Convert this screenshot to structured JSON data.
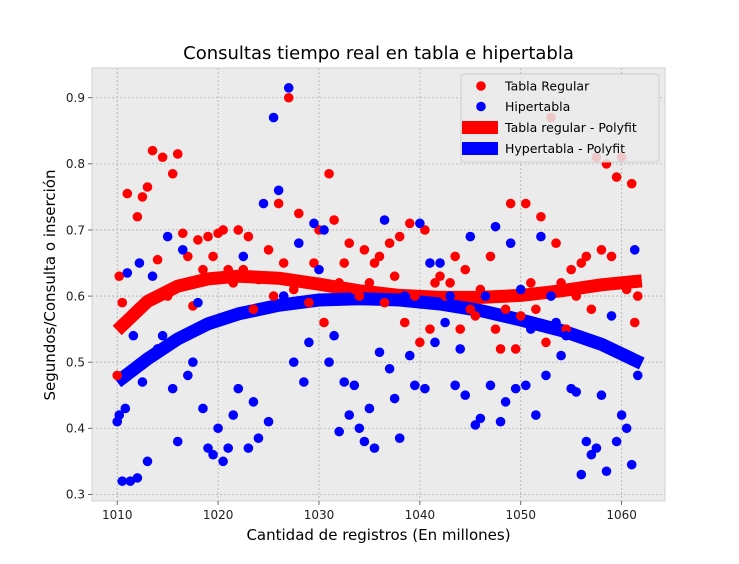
{
  "chart_data": {
    "type": "scatter",
    "title": "Consultas tiempo real en tabla e hipertabla",
    "xlabel": "Cantidad de registros (En millones)",
    "ylabel": "Segundos/Consulta o inserción",
    "xlim": [
      1007.5,
      1064.3
    ],
    "ylim": [
      0.29,
      0.945
    ],
    "xticks": [
      1010,
      1020,
      1030,
      1040,
      1050,
      1060
    ],
    "yticks": [
      0.3,
      0.4,
      0.5,
      0.6,
      0.7,
      0.8,
      0.9
    ],
    "grid": true,
    "legend_position": "top-right",
    "legend": {
      "tabla_regular": "Tabla Regular",
      "hipertabla": "Hipertabla",
      "tabla_fit": "Tabla regular - Polyfit",
      "hiper_fit": "Hypertabla - Polyfit"
    },
    "colors": {
      "tabla": "#ff0000",
      "hiper": "#0000ff",
      "background": "#ebebeb",
      "grid": "#b0b0b0"
    },
    "series": [
      {
        "name": "Tabla Regular",
        "points": [
          [
            1010,
            0.48
          ],
          [
            1010.2,
            0.63
          ],
          [
            1010.5,
            0.59
          ],
          [
            1011,
            0.755
          ],
          [
            1011.5,
            0.57
          ],
          [
            1012,
            0.72
          ],
          [
            1012.5,
            0.75
          ],
          [
            1013,
            0.765
          ],
          [
            1013.5,
            0.82
          ],
          [
            1014,
            0.655
          ],
          [
            1014.5,
            0.81
          ],
          [
            1015,
            0.6
          ],
          [
            1015.5,
            0.785
          ],
          [
            1016,
            0.815
          ],
          [
            1016.5,
            0.695
          ],
          [
            1017,
            0.66
          ],
          [
            1017.5,
            0.585
          ],
          [
            1018,
            0.685
          ],
          [
            1018.5,
            0.64
          ],
          [
            1019,
            0.69
          ],
          [
            1019.5,
            0.66
          ],
          [
            1020,
            0.695
          ],
          [
            1020.5,
            0.7
          ],
          [
            1021,
            0.64
          ],
          [
            1021.5,
            0.62
          ],
          [
            1022,
            0.7
          ],
          [
            1022.5,
            0.64
          ],
          [
            1023,
            0.69
          ],
          [
            1023.5,
            0.58
          ],
          [
            1024,
            0.625
          ],
          [
            1024.5,
            0.63
          ],
          [
            1025,
            0.67
          ],
          [
            1025.5,
            0.6
          ],
          [
            1026,
            0.74
          ],
          [
            1026.5,
            0.65
          ],
          [
            1027,
            0.9
          ],
          [
            1027.5,
            0.61
          ],
          [
            1028,
            0.725
          ],
          [
            1028.5,
            0.62
          ],
          [
            1029,
            0.59
          ],
          [
            1029.5,
            0.65
          ],
          [
            1030,
            0.7
          ],
          [
            1030.5,
            0.56
          ],
          [
            1031,
            0.785
          ],
          [
            1031.5,
            0.715
          ],
          [
            1032,
            0.62
          ],
          [
            1032.5,
            0.65
          ],
          [
            1033,
            0.68
          ],
          [
            1033.5,
            0.61
          ],
          [
            1034,
            0.6
          ],
          [
            1034.5,
            0.67
          ],
          [
            1035,
            0.62
          ],
          [
            1035.5,
            0.65
          ],
          [
            1036,
            0.66
          ],
          [
            1036.5,
            0.59
          ],
          [
            1037,
            0.68
          ],
          [
            1037.5,
            0.63
          ],
          [
            1038,
            0.69
          ],
          [
            1038.5,
            0.56
          ],
          [
            1039,
            0.71
          ],
          [
            1039.5,
            0.6
          ],
          [
            1040,
            0.53
          ],
          [
            1040.5,
            0.7
          ],
          [
            1041,
            0.55
          ],
          [
            1041.5,
            0.62
          ],
          [
            1042,
            0.63
          ],
          [
            1042.5,
            0.6
          ],
          [
            1043,
            0.62
          ],
          [
            1043.5,
            0.66
          ],
          [
            1044,
            0.55
          ],
          [
            1044.5,
            0.64
          ],
          [
            1045,
            0.58
          ],
          [
            1045.5,
            0.57
          ],
          [
            1046,
            0.61
          ],
          [
            1046.5,
            0.6
          ],
          [
            1047,
            0.66
          ],
          [
            1047.5,
            0.55
          ],
          [
            1048,
            0.52
          ],
          [
            1048.5,
            0.58
          ],
          [
            1049,
            0.74
          ],
          [
            1049.5,
            0.52
          ],
          [
            1050,
            0.57
          ],
          [
            1050.5,
            0.74
          ],
          [
            1051,
            0.62
          ],
          [
            1051.5,
            0.58
          ],
          [
            1052,
            0.72
          ],
          [
            1052.5,
            0.53
          ],
          [
            1053,
            0.87
          ],
          [
            1053.5,
            0.68
          ],
          [
            1054,
            0.62
          ],
          [
            1054.5,
            0.55
          ],
          [
            1055,
            0.64
          ],
          [
            1055.5,
            0.6
          ],
          [
            1056,
            0.65
          ],
          [
            1056.5,
            0.66
          ],
          [
            1057,
            0.58
          ],
          [
            1057.5,
            0.81
          ],
          [
            1058,
            0.67
          ],
          [
            1058.5,
            0.8
          ],
          [
            1059,
            0.66
          ],
          [
            1059.5,
            0.78
          ],
          [
            1060,
            0.81
          ],
          [
            1060.5,
            0.61
          ],
          [
            1061,
            0.77
          ],
          [
            1061.3,
            0.56
          ],
          [
            1061.6,
            0.6
          ]
        ],
        "fit": [
          [
            1010,
            0.548
          ],
          [
            1013,
            0.592
          ],
          [
            1016,
            0.615
          ],
          [
            1019,
            0.626
          ],
          [
            1022,
            0.63
          ],
          [
            1026,
            0.627
          ],
          [
            1030,
            0.618
          ],
          [
            1034,
            0.608
          ],
          [
            1038,
            0.601
          ],
          [
            1042,
            0.598
          ],
          [
            1046,
            0.598
          ],
          [
            1050,
            0.601
          ],
          [
            1054,
            0.608
          ],
          [
            1058,
            0.617
          ],
          [
            1062,
            0.623
          ]
        ]
      },
      {
        "name": "Hipertabla",
        "points": [
          [
            1010,
            0.41
          ],
          [
            1010.2,
            0.42
          ],
          [
            1010.5,
            0.32
          ],
          [
            1010.8,
            0.43
          ],
          [
            1011,
            0.635
          ],
          [
            1011.3,
            0.32
          ],
          [
            1011.6,
            0.54
          ],
          [
            1012,
            0.325
          ],
          [
            1012.2,
            0.65
          ],
          [
            1012.5,
            0.47
          ],
          [
            1013,
            0.35
          ],
          [
            1013.5,
            0.63
          ],
          [
            1014,
            0.52
          ],
          [
            1014.5,
            0.54
          ],
          [
            1015,
            0.69
          ],
          [
            1015.5,
            0.46
          ],
          [
            1016,
            0.38
          ],
          [
            1016.5,
            0.67
          ],
          [
            1017,
            0.48
          ],
          [
            1017.5,
            0.5
          ],
          [
            1018,
            0.59
          ],
          [
            1018.5,
            0.43
          ],
          [
            1019,
            0.37
          ],
          [
            1019.5,
            0.36
          ],
          [
            1020,
            0.4
          ],
          [
            1020.5,
            0.35
          ],
          [
            1021,
            0.37
          ],
          [
            1021.5,
            0.42
          ],
          [
            1022,
            0.46
          ],
          [
            1022.5,
            0.66
          ],
          [
            1023,
            0.37
          ],
          [
            1023.5,
            0.44
          ],
          [
            1024,
            0.385
          ],
          [
            1024.5,
            0.74
          ],
          [
            1025,
            0.41
          ],
          [
            1025.5,
            0.87
          ],
          [
            1026,
            0.76
          ],
          [
            1026.5,
            0.6
          ],
          [
            1027,
            0.915
          ],
          [
            1027.5,
            0.5
          ],
          [
            1028,
            0.68
          ],
          [
            1028.5,
            0.47
          ],
          [
            1029,
            0.53
          ],
          [
            1029.5,
            0.71
          ],
          [
            1030,
            0.64
          ],
          [
            1030.5,
            0.7
          ],
          [
            1031,
            0.5
          ],
          [
            1031.5,
            0.54
          ],
          [
            1032,
            0.395
          ],
          [
            1032.5,
            0.47
          ],
          [
            1033,
            0.42
          ],
          [
            1033.5,
            0.465
          ],
          [
            1034,
            0.4
          ],
          [
            1034.5,
            0.38
          ],
          [
            1035,
            0.43
          ],
          [
            1035.5,
            0.37
          ],
          [
            1036,
            0.515
          ],
          [
            1036.5,
            0.715
          ],
          [
            1037,
            0.49
          ],
          [
            1037.5,
            0.445
          ],
          [
            1038,
            0.385
          ],
          [
            1038.5,
            0.6
          ],
          [
            1039,
            0.51
          ],
          [
            1039.5,
            0.465
          ],
          [
            1040,
            0.71
          ],
          [
            1040.5,
            0.46
          ],
          [
            1041,
            0.65
          ],
          [
            1041.5,
            0.53
          ],
          [
            1042,
            0.65
          ],
          [
            1042.5,
            0.56
          ],
          [
            1043,
            0.6
          ],
          [
            1043.5,
            0.465
          ],
          [
            1044,
            0.52
          ],
          [
            1044.5,
            0.45
          ],
          [
            1045,
            0.69
          ],
          [
            1045.5,
            0.405
          ],
          [
            1046,
            0.415
          ],
          [
            1046.5,
            0.6
          ],
          [
            1047,
            0.465
          ],
          [
            1047.5,
            0.705
          ],
          [
            1048,
            0.41
          ],
          [
            1048.5,
            0.44
          ],
          [
            1049,
            0.68
          ],
          [
            1049.5,
            0.46
          ],
          [
            1050,
            0.61
          ],
          [
            1050.5,
            0.465
          ],
          [
            1051,
            0.55
          ],
          [
            1051.5,
            0.42
          ],
          [
            1052,
            0.69
          ],
          [
            1052.5,
            0.48
          ],
          [
            1053,
            0.6
          ],
          [
            1053.5,
            0.56
          ],
          [
            1054,
            0.51
          ],
          [
            1054.5,
            0.54
          ],
          [
            1055,
            0.46
          ],
          [
            1055.5,
            0.455
          ],
          [
            1056,
            0.33
          ],
          [
            1056.5,
            0.38
          ],
          [
            1057,
            0.36
          ],
          [
            1057.5,
            0.37
          ],
          [
            1058,
            0.45
          ],
          [
            1058.5,
            0.335
          ],
          [
            1059,
            0.57
          ],
          [
            1059.5,
            0.38
          ],
          [
            1060,
            0.42
          ],
          [
            1060.5,
            0.4
          ],
          [
            1061,
            0.345
          ],
          [
            1061.3,
            0.67
          ],
          [
            1061.6,
            0.48
          ]
        ],
        "fit": [
          [
            1010,
            0.47
          ],
          [
            1013,
            0.505
          ],
          [
            1016,
            0.535
          ],
          [
            1019,
            0.558
          ],
          [
            1022,
            0.573
          ],
          [
            1026,
            0.586
          ],
          [
            1030,
            0.594
          ],
          [
            1034,
            0.596
          ],
          [
            1038,
            0.594
          ],
          [
            1042,
            0.588
          ],
          [
            1046,
            0.578
          ],
          [
            1050,
            0.564
          ],
          [
            1054,
            0.548
          ],
          [
            1058,
            0.527
          ],
          [
            1062,
            0.498
          ]
        ]
      }
    ]
  }
}
